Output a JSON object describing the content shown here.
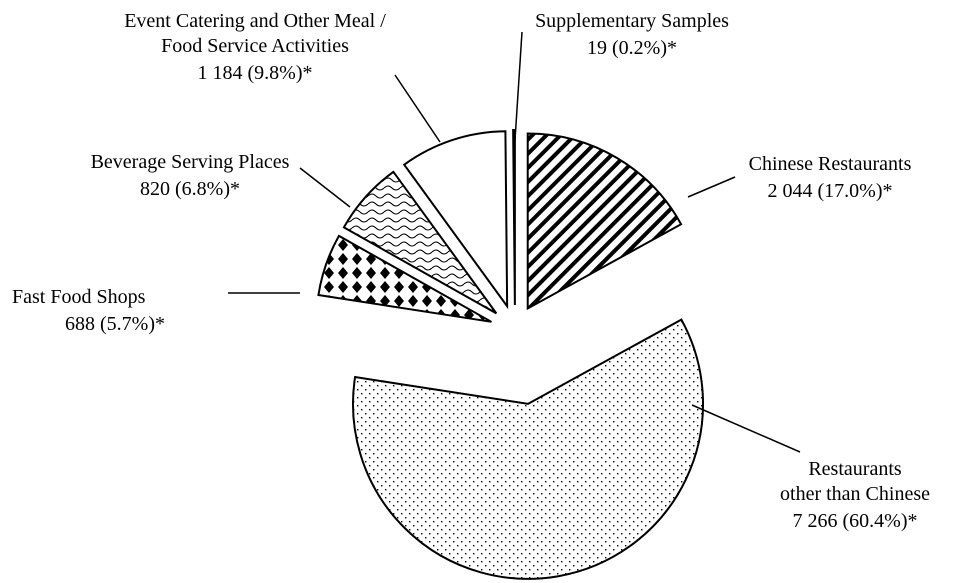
{
  "chart_data": {
    "type": "pie",
    "categories": [
      [
        "Chinese Restaurants"
      ],
      [
        "Restaurants",
        "other than Chinese"
      ],
      [
        "Fast Food Shops"
      ],
      [
        "Beverage Serving Places"
      ],
      [
        "Event Catering and Other Meal /",
        "Food Service Activities"
      ],
      [
        "Supplementary Samples"
      ]
    ],
    "values": [
      2044,
      7266,
      688,
      820,
      1184,
      19
    ],
    "value_labels": [
      "2 044 (17.0%)*",
      "7 266 (60.4%)*",
      "688 (5.7%)*",
      "820 (6.8%)*",
      "1 184 (9.8%)*",
      "19 (0.2%)*"
    ]
  }
}
